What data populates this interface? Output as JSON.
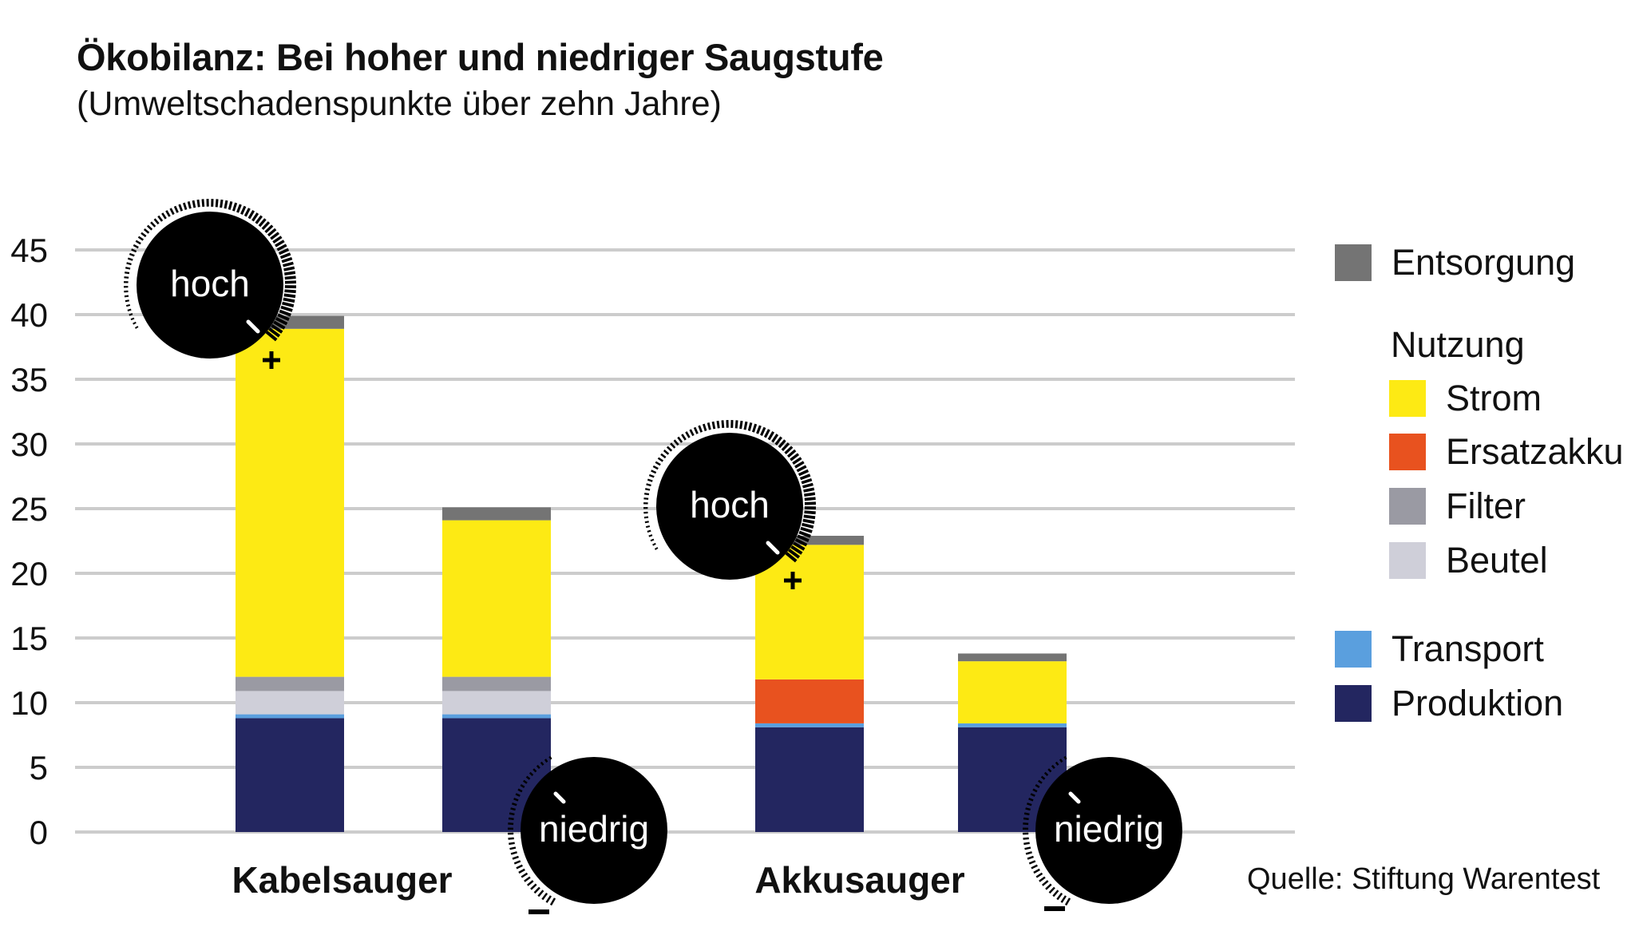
{
  "chart_data": {
    "type": "bar",
    "stacked": true,
    "title": "Ökobilanz: Bei hoher und niedriger Saugstufe",
    "subtitle": "(Umweltschadenspunkte über zehn Jahre)",
    "source": "Quelle: Stiftung Warentest",
    "ylim": [
      0,
      45
    ],
    "yticks": [
      0,
      5,
      10,
      15,
      20,
      25,
      30,
      35,
      40,
      45
    ],
    "grid": true,
    "legend_position": "right",
    "groups": [
      {
        "label": "Kabelsauger",
        "bars": [
          0,
          1
        ]
      },
      {
        "label": "Akkusauger",
        "bars": [
          2,
          3
        ]
      }
    ],
    "bars": [
      {
        "group": "Kabelsauger",
        "setting": "hoch",
        "sign": "+"
      },
      {
        "group": "Kabelsauger",
        "setting": "niedrig",
        "sign": "–"
      },
      {
        "group": "Akkusauger",
        "setting": "hoch",
        "sign": "+"
      },
      {
        "group": "Akkusauger",
        "setting": "niedrig",
        "sign": "–"
      }
    ],
    "series": [
      {
        "name": "Produktion",
        "color": "#232660",
        "values": [
          8.8,
          8.8,
          8.1,
          8.1
        ]
      },
      {
        "name": "Transport",
        "color": "#5a9fde",
        "values": [
          0.3,
          0.3,
          0.3,
          0.3
        ]
      },
      {
        "name": "Beutel",
        "color": "#cfcfd9",
        "values": [
          1.8,
          1.8,
          0,
          0
        ]
      },
      {
        "name": "Filter",
        "color": "#9a9aa3",
        "values": [
          1.1,
          1.1,
          0,
          0
        ]
      },
      {
        "name": "Ersatzakku",
        "color": "#e8521f",
        "values": [
          0,
          0,
          3.4,
          0
        ]
      },
      {
        "name": "Strom",
        "color": "#fdea14",
        "values": [
          26.9,
          12.1,
          10.4,
          4.8
        ]
      },
      {
        "name": "Entsorgung",
        "color": "#747474",
        "values": [
          1.0,
          1.0,
          0.7,
          0.6
        ]
      }
    ],
    "legend": {
      "top": [
        "Entsorgung"
      ],
      "nutzung_title": "Nutzung",
      "nutzung": [
        "Strom",
        "Ersatzakku",
        "Filter",
        "Beutel"
      ],
      "bottom": [
        "Transport",
        "Produktion"
      ]
    }
  }
}
